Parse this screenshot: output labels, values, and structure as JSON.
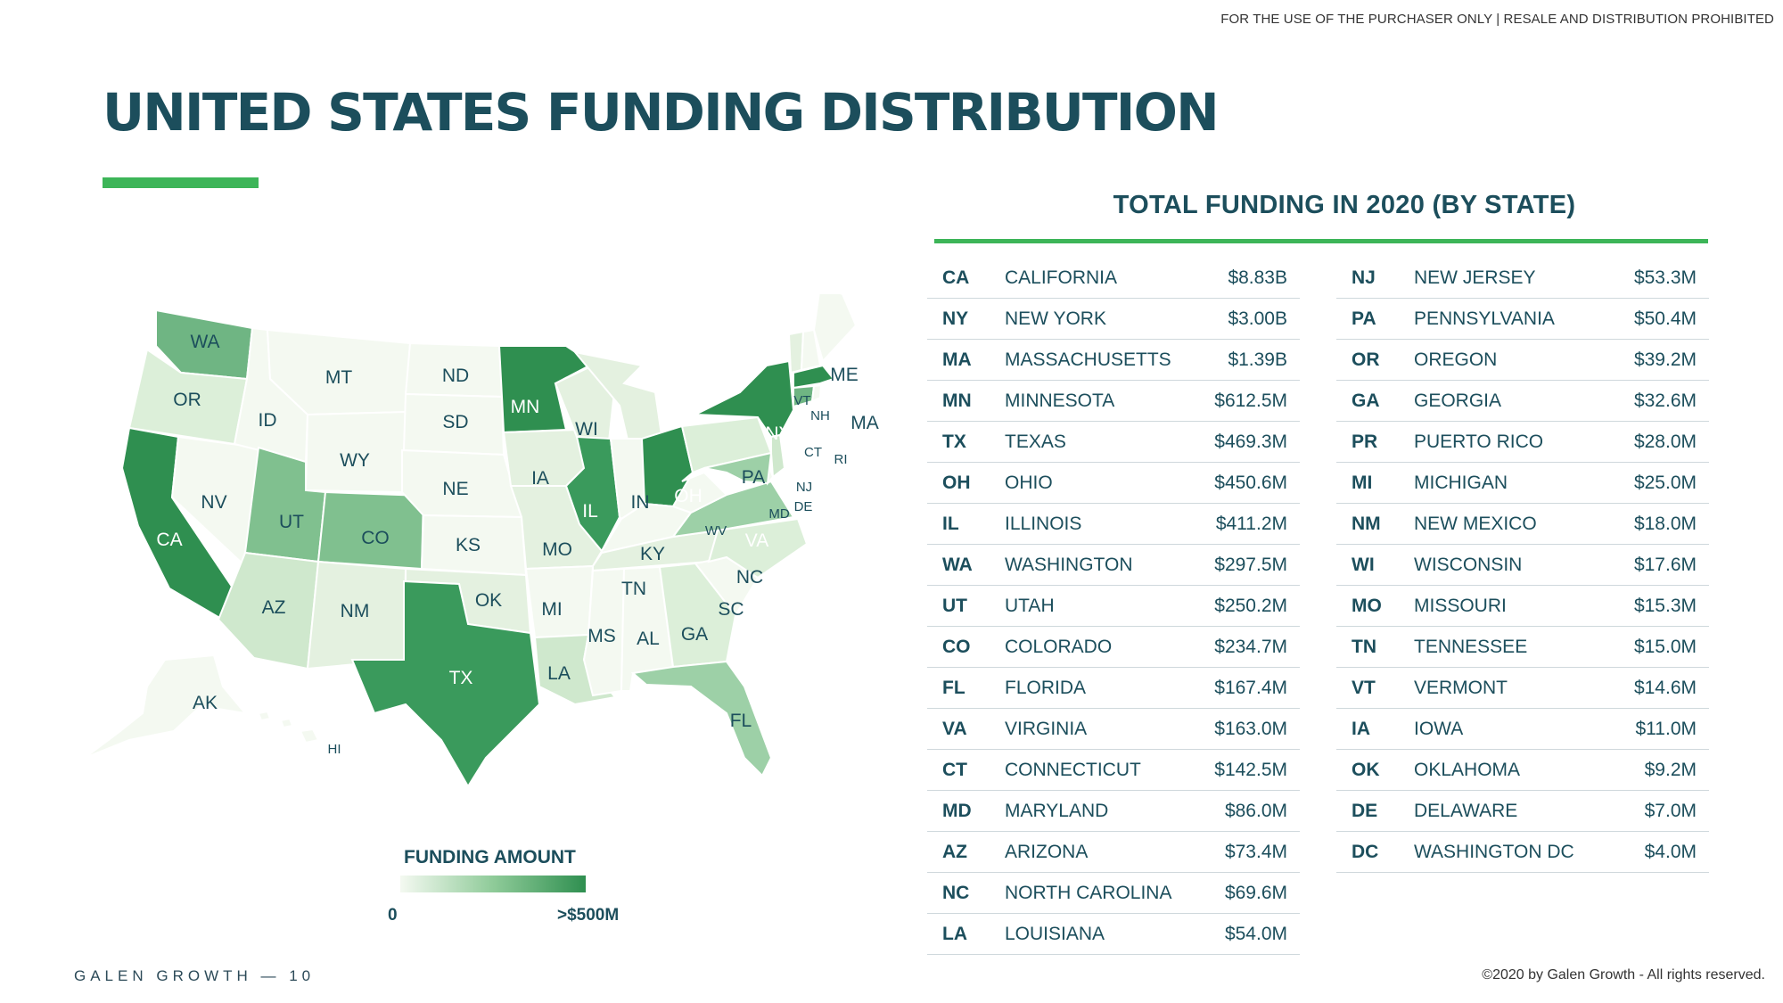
{
  "notice": "FOR THE USE OF THE PURCHASER ONLY | RESALE AND DISTRIBUTION PROHIBITED",
  "title": "UNITED STATES FUNDING DISTRIBUTION",
  "table_title": "TOTAL FUNDING IN 2020 (BY STATE)",
  "colors": {
    "accent": "#3db558",
    "title": "#1c4e5c",
    "map_high": "#2f8f50",
    "map_low": "#f4f9f1"
  },
  "funding_left": [
    {
      "abbr": "CA",
      "name": "CALIFORNIA",
      "amount": "$8.83B"
    },
    {
      "abbr": "NY",
      "name": "NEW YORK",
      "amount": "$3.00B"
    },
    {
      "abbr": "MA",
      "name": "MASSACHUSETTS",
      "amount": "$1.39B"
    },
    {
      "abbr": "MN",
      "name": "MINNESOTA",
      "amount": "$612.5M"
    },
    {
      "abbr": "TX",
      "name": "TEXAS",
      "amount": "$469.3M"
    },
    {
      "abbr": "OH",
      "name": "OHIO",
      "amount": "$450.6M"
    },
    {
      "abbr": "IL",
      "name": "ILLINOIS",
      "amount": "$411.2M"
    },
    {
      "abbr": "WA",
      "name": "WASHINGTON",
      "amount": "$297.5M"
    },
    {
      "abbr": "UT",
      "name": "UTAH",
      "amount": "$250.2M"
    },
    {
      "abbr": "CO",
      "name": "COLORADO",
      "amount": "$234.7M"
    },
    {
      "abbr": "FL",
      "name": "FLORIDA",
      "amount": "$167.4M"
    },
    {
      "abbr": "VA",
      "name": "VIRGINIA",
      "amount": "$163.0M"
    },
    {
      "abbr": "CT",
      "name": "CONNECTICUT",
      "amount": "$142.5M"
    },
    {
      "abbr": "MD",
      "name": "MARYLAND",
      "amount": "$86.0M"
    },
    {
      "abbr": "AZ",
      "name": "ARIZONA",
      "amount": "$73.4M"
    },
    {
      "abbr": "NC",
      "name": "NORTH CAROLINA",
      "amount": "$69.6M"
    },
    {
      "abbr": "LA",
      "name": "LOUISIANA",
      "amount": "$54.0M"
    }
  ],
  "funding_right": [
    {
      "abbr": "NJ",
      "name": "NEW JERSEY",
      "amount": "$53.3M"
    },
    {
      "abbr": "PA",
      "name": "PENNSYLVANIA",
      "amount": "$50.4M"
    },
    {
      "abbr": "OR",
      "name": "OREGON",
      "amount": "$39.2M"
    },
    {
      "abbr": "GA",
      "name": "GEORGIA",
      "amount": "$32.6M"
    },
    {
      "abbr": "PR",
      "name": "PUERTO RICO",
      "amount": "$28.0M"
    },
    {
      "abbr": "MI",
      "name": "MICHIGAN",
      "amount": "$25.0M"
    },
    {
      "abbr": "NM",
      "name": "NEW MEXICO",
      "amount": "$18.0M"
    },
    {
      "abbr": "WI",
      "name": "WISCONSIN",
      "amount": "$17.6M"
    },
    {
      "abbr": "MO",
      "name": "MISSOURI",
      "amount": "$15.3M"
    },
    {
      "abbr": "TN",
      "name": "TENNESSEE",
      "amount": "$15.0M"
    },
    {
      "abbr": "VT",
      "name": "VERMONT",
      "amount": "$14.6M"
    },
    {
      "abbr": "IA",
      "name": "IOWA",
      "amount": "$11.0M"
    },
    {
      "abbr": "OK",
      "name": "OKLAHOMA",
      "amount": "$9.2M"
    },
    {
      "abbr": "DE",
      "name": "DELAWARE",
      "amount": "$7.0M"
    },
    {
      "abbr": "DC",
      "name": "WASHINGTON DC",
      "amount": "$4.0M"
    }
  ],
  "map_labels": [
    "WA",
    "OR",
    "CA",
    "NV",
    "ID",
    "MT",
    "WY",
    "UT",
    "AZ",
    "CO",
    "NM",
    "ND",
    "SD",
    "NE",
    "KS",
    "OK",
    "TX",
    "MN",
    "IA",
    "MO",
    "MI",
    "LA",
    "WI",
    "IL",
    "IN",
    "KY",
    "TN",
    "MS",
    "AL",
    "GA",
    "FL",
    "SC",
    "NC",
    "VA",
    "WV",
    "OH",
    "PA",
    "NY",
    "VT",
    "NH",
    "ME",
    "MA",
    "CT",
    "RI",
    "NJ",
    "DE",
    "MD",
    "AK",
    "HI"
  ],
  "legend": {
    "title": "FUNDING AMOUNT",
    "min": "0",
    "max": ">$500M"
  },
  "footer": {
    "left": "GALEN GROWTH  —  10",
    "right": "©2020 by Galen Growth  - All rights reserved."
  }
}
